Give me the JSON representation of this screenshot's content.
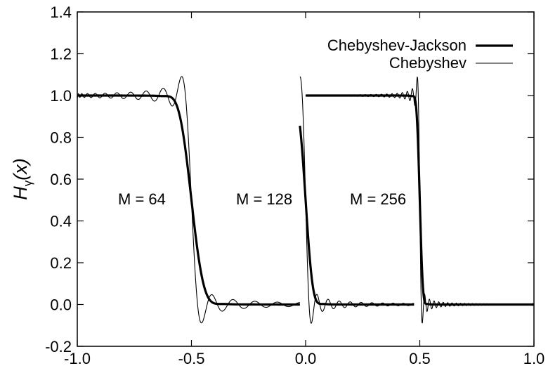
{
  "chart_data": {
    "type": "line",
    "title": "",
    "xlabel": "",
    "ylabel": {
      "main": "H",
      "sub": "γ",
      "arg": "(x)"
    },
    "xlim": [
      -1.0,
      1.0
    ],
    "ylim": [
      -0.2,
      1.4
    ],
    "xticks": [
      -1.0,
      -0.5,
      0.0,
      0.5,
      1.0
    ],
    "xtick_labels": [
      "-1.0",
      "-0.5",
      "0.0",
      "0.5",
      "1.0"
    ],
    "yticks": [
      -0.2,
      0.0,
      0.2,
      0.4,
      0.6,
      0.8,
      1.0,
      1.2,
      1.4
    ],
    "ytick_labels": [
      "-0.2",
      "0.0",
      "0.2",
      "0.4",
      "0.6",
      "0.8",
      "1.0",
      "1.2",
      "1.4"
    ],
    "grid": false,
    "legend_position": "top-right",
    "series": [
      {
        "name": "Chebyshev-Jackson",
        "style": "thick"
      },
      {
        "name": "Chebyshev",
        "style": "thin"
      }
    ],
    "panels": [
      {
        "label": "M = 64",
        "M": 64,
        "x_range": [
          -1.0,
          -0.025
        ],
        "step_at": -0.5
      },
      {
        "label": "M = 128",
        "M": 128,
        "x_range": [
          -0.025,
          0.475
        ],
        "step_at": 0.0
      },
      {
        "label": "M = 256",
        "M": 256,
        "x_range": [
          0.0,
          1.0
        ],
        "step_at": 0.5
      }
    ]
  }
}
